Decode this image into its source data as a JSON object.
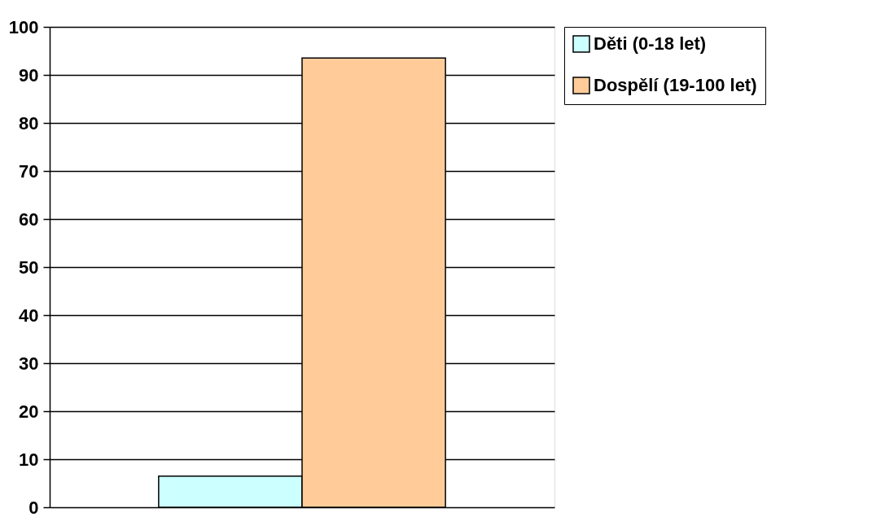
{
  "chart_data": {
    "type": "bar",
    "categories": [
      null
    ],
    "series": [
      {
        "name": "Děti (0-18 let)",
        "color": "#ccffff",
        "values": [
          6.5
        ]
      },
      {
        "name": "Dospělí (19-100 let)",
        "color": "#ffcc99",
        "values": [
          93.5
        ]
      }
    ],
    "ylim": [
      0,
      100
    ],
    "yticks": [
      0,
      10,
      20,
      30,
      40,
      50,
      60,
      70,
      80,
      90,
      100
    ],
    "grid": "y",
    "legend": "right",
    "tick_labels": "y"
  }
}
